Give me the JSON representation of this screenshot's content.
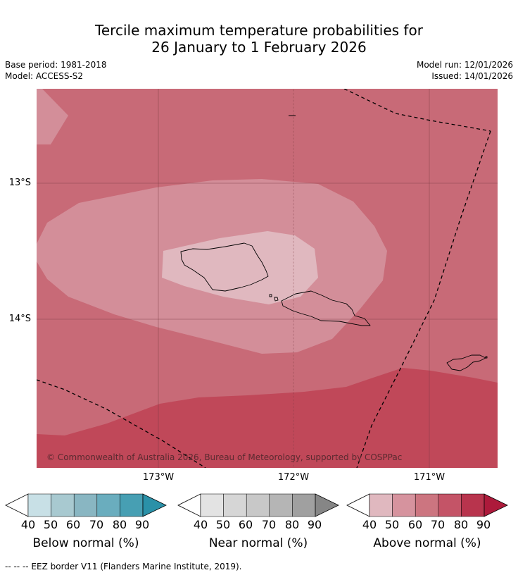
{
  "title": {
    "line1": "Tercile maximum temperature probabilities for",
    "line2": "26 January to 1 February 2026"
  },
  "meta": {
    "base_period": "Base period: 1981-2018",
    "model": "Model: ACCESS-S2",
    "model_run": "Model run: 12/01/2026",
    "issued": "Issued: 14/01/2026"
  },
  "map": {
    "lat_labels": [
      "13°S",
      "14°S"
    ],
    "lon_labels": [
      "173°W",
      "172°W",
      "171°W"
    ],
    "copyright": "© Commonwealth of Australia 2026, Bureau of Meteorology, supported by COSPPac",
    "colors": {
      "above_50": "#e0b8bf",
      "above_60": "#d38e99",
      "above_70": "#c86a77",
      "above_80": "#c04859",
      "island_outline": "#000000",
      "eez_border": "#000000",
      "gridline": "#7a3a42"
    }
  },
  "colorbars": {
    "below": {
      "label": "Below normal (%)",
      "ticks": [
        "40",
        "50",
        "60",
        "70",
        "80",
        "90"
      ],
      "colors": [
        "#ffffff",
        "#c8e0e6",
        "#a8c9d0",
        "#89b6c2",
        "#6aadbe",
        "#479fb3",
        "#2a91a8"
      ]
    },
    "near": {
      "label": "Near normal (%)",
      "ticks": [
        "40",
        "50",
        "60",
        "70",
        "80",
        "90"
      ],
      "colors": [
        "#ffffff",
        "#e3e3e3",
        "#d6d6d6",
        "#c8c8c8",
        "#b5b5b5",
        "#a0a0a0",
        "#868686"
      ]
    },
    "above": {
      "label": "Above normal (%)",
      "ticks": [
        "40",
        "50",
        "60",
        "70",
        "80",
        "90"
      ],
      "colors": [
        "#ffffff",
        "#e0b8bf",
        "#d6939e",
        "#cc7580",
        "#c45467",
        "#b8344d",
        "#ad1a3b"
      ]
    }
  },
  "footnote": "--  --  -- EEZ border V11 (Flanders Marine Institute, 2019)."
}
